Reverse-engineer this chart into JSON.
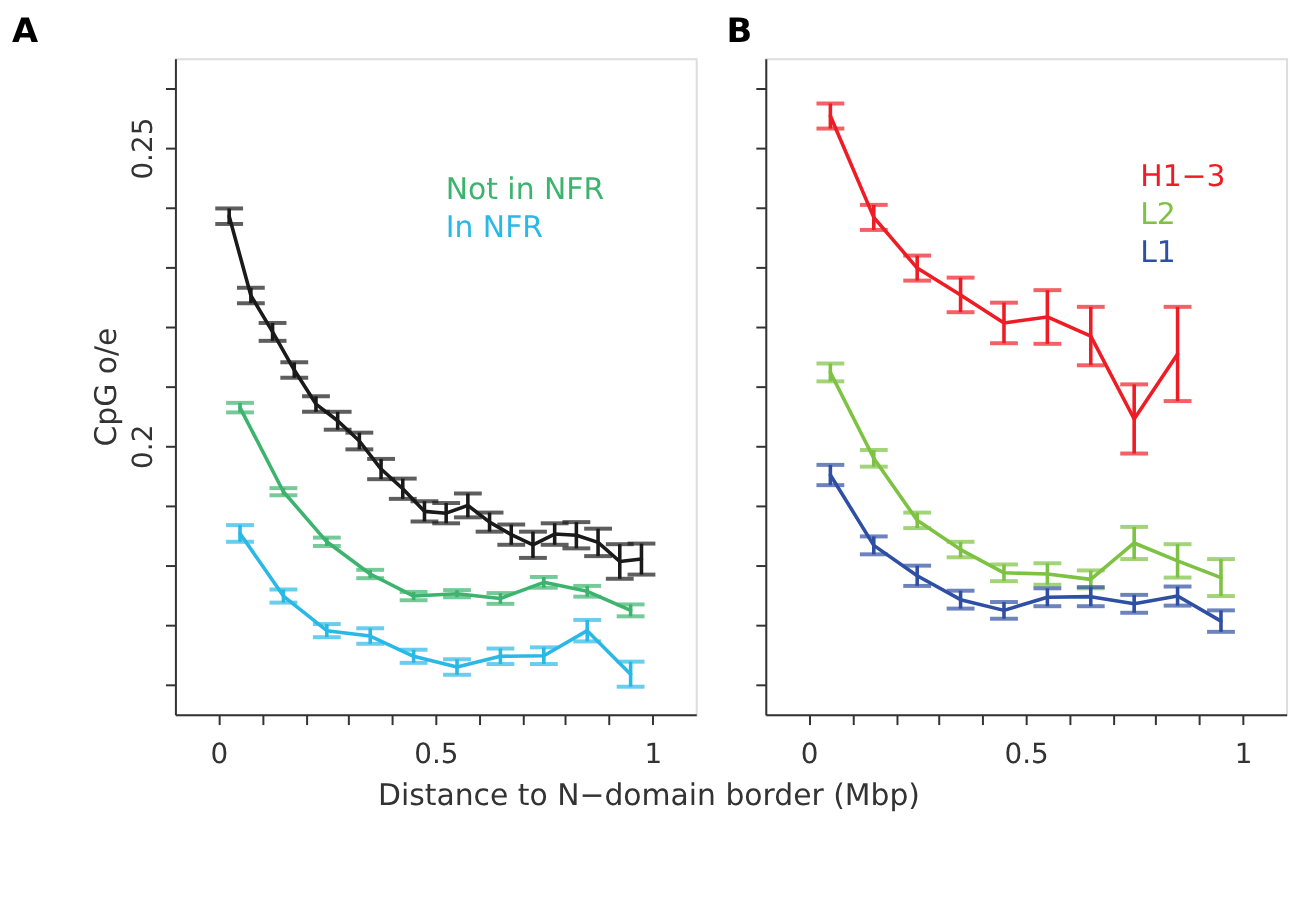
{
  "chart_data": [
    {
      "type": "line",
      "title": "A",
      "xlabel": "Distance to N−domain border (Mbp)",
      "ylabel": "CpG o/e",
      "legend": "top",
      "tick_labels": true,
      "xlim": [
        -0.1,
        1.1
      ],
      "ylim": [
        0.155,
        0.265
      ],
      "xticks": [
        0,
        {
          "value": 0.1,
          "label": null
        },
        {
          "value": 0.2,
          "label": null
        },
        {
          "value": 0.3,
          "label": null
        },
        {
          "value": 0.4,
          "label": null
        },
        0.5,
        {
          "value": 0.6,
          "label": null
        },
        {
          "value": 0.7,
          "label": null
        },
        {
          "value": 0.8,
          "label": null
        },
        {
          "value": 0.9,
          "label": null
        },
        1
      ],
      "yticks": [
        {
          "value": 0.16,
          "label": null
        },
        {
          "value": 0.17,
          "label": null
        },
        {
          "value": 0.18,
          "label": null
        },
        {
          "value": 0.19,
          "label": null
        },
        0.2,
        {
          "value": 0.21,
          "label": null
        },
        {
          "value": 0.22,
          "label": null
        },
        {
          "value": 0.23,
          "label": null
        },
        {
          "value": 0.24,
          "label": null
        },
        0.25,
        {
          "value": 0.26,
          "label": null
        }
      ],
      "series": [
        {
          "color": "#1a1a1a",
          "x": [
            0.025,
            0.075,
            0.125,
            0.175,
            0.225,
            0.275,
            0.325,
            0.375,
            0.425,
            0.475,
            0.525,
            0.575,
            0.625,
            0.675,
            0.725,
            0.775,
            0.825,
            0.875,
            0.925,
            0.975
          ],
          "values": [
            0.2385,
            0.2252,
            0.2191,
            0.2127,
            0.207,
            0.2042,
            0.2008,
            0.1961,
            0.1928,
            0.189,
            0.1887,
            0.19,
            0.1872,
            0.1851,
            0.1834,
            0.1852,
            0.185,
            0.1838,
            0.1806,
            0.181
          ],
          "errors": [
            0.0013,
            0.0013,
            0.0015,
            0.0013,
            0.0013,
            0.0015,
            0.0014,
            0.0017,
            0.0017,
            0.0017,
            0.0017,
            0.002,
            0.0016,
            0.0017,
            0.0022,
            0.0018,
            0.0022,
            0.0023,
            0.0029,
            0.0026
          ]
        },
        {
          "name": "Not in NFR",
          "color": "#3cb46e",
          "x": [
            0.05,
            0.15,
            0.25,
            0.35,
            0.45,
            0.55,
            0.65,
            0.75,
            0.85,
            0.95
          ],
          "values": [
            0.2064,
            0.1923,
            0.1839,
            0.1785,
            0.1748,
            0.1752,
            0.1744,
            0.1771,
            0.1756,
            0.1724
          ],
          "errors": [
            0.0008,
            0.0006,
            0.0007,
            0.0007,
            0.0007,
            0.0006,
            0.0009,
            0.0009,
            0.0009,
            0.001
          ]
        },
        {
          "name": "In NFR",
          "color": "#2ab8e6",
          "x": [
            0.05,
            0.15,
            0.25,
            0.35,
            0.45,
            0.55,
            0.65,
            0.75,
            0.85,
            0.95
          ],
          "values": [
            0.1853,
            0.1748,
            0.169,
            0.1681,
            0.1647,
            0.1629,
            0.1647,
            0.1648,
            0.169,
            0.1617
          ],
          "errors": [
            0.0014,
            0.0011,
            0.0011,
            0.0013,
            0.0011,
            0.0013,
            0.0013,
            0.0014,
            0.0018,
            0.0021
          ]
        }
      ]
    },
    {
      "type": "line",
      "title": "B",
      "legend": "top right",
      "tick_labels": "x",
      "xlim": [
        -0.1,
        1.1
      ],
      "ylim": [
        0.155,
        0.265
      ],
      "xticks": [
        0,
        {
          "value": 0.1,
          "label": null
        },
        {
          "value": 0.2,
          "label": null
        },
        {
          "value": 0.3,
          "label": null
        },
        {
          "value": 0.4,
          "label": null
        },
        0.5,
        {
          "value": 0.6,
          "label": null
        },
        {
          "value": 0.7,
          "label": null
        },
        {
          "value": 0.8,
          "label": null
        },
        {
          "value": 0.9,
          "label": null
        },
        1
      ],
      "yticks": [
        {
          "value": 0.16,
          "label": null
        },
        {
          "value": 0.17,
          "label": null
        },
        {
          "value": 0.18,
          "label": null
        },
        {
          "value": 0.19,
          "label": null
        },
        {
          "value": 0.2,
          "label": null
        },
        {
          "value": 0.21,
          "label": null
        },
        {
          "value": 0.22,
          "label": null
        },
        {
          "value": 0.23,
          "label": null
        },
        {
          "value": 0.24,
          "label": null
        },
        {
          "value": 0.25,
          "label": null
        },
        {
          "value": 0.26,
          "label": null
        }
      ],
      "series": [
        {
          "name": "H1−3",
          "color": "#ee1c24",
          "x": [
            0.05,
            0.15,
            0.25,
            0.35,
            0.45,
            0.55,
            0.65,
            0.75,
            0.85
          ],
          "values": [
            0.2553,
            0.2383,
            0.2298,
            0.2253,
            0.2206,
            0.2216,
            0.2184,
            0.2045,
            0.2154
          ],
          "errors": [
            0.0021,
            0.0021,
            0.0021,
            0.0029,
            0.0034,
            0.0045,
            0.0049,
            0.0058,
            0.0079
          ]
        },
        {
          "name": "L2",
          "color": "#7dc242",
          "x": [
            0.05,
            0.15,
            0.25,
            0.35,
            0.45,
            0.55,
            0.65,
            0.75,
            0.85,
            0.95
          ],
          "values": [
            0.2123,
            0.1979,
            0.1875,
            0.1826,
            0.1787,
            0.1785,
            0.1776,
            0.1837,
            0.1807,
            0.1779
          ],
          "errors": [
            0.0015,
            0.0014,
            0.0013,
            0.0013,
            0.0014,
            0.0018,
            0.0015,
            0.0027,
            0.0028,
            0.0031
          ]
        },
        {
          "name": "L1",
          "color": "#2e4fa3",
          "x": [
            0.05,
            0.15,
            0.25,
            0.35,
            0.45,
            0.55,
            0.65,
            0.75,
            0.85,
            0.95
          ],
          "values": [
            0.1951,
            0.1833,
            0.1782,
            0.1742,
            0.1724,
            0.1746,
            0.1747,
            0.1735,
            0.1748,
            0.1706
          ],
          "errors": [
            0.0017,
            0.0015,
            0.0017,
            0.0015,
            0.0014,
            0.0015,
            0.0016,
            0.0015,
            0.0016,
            0.0018
          ]
        }
      ]
    }
  ]
}
